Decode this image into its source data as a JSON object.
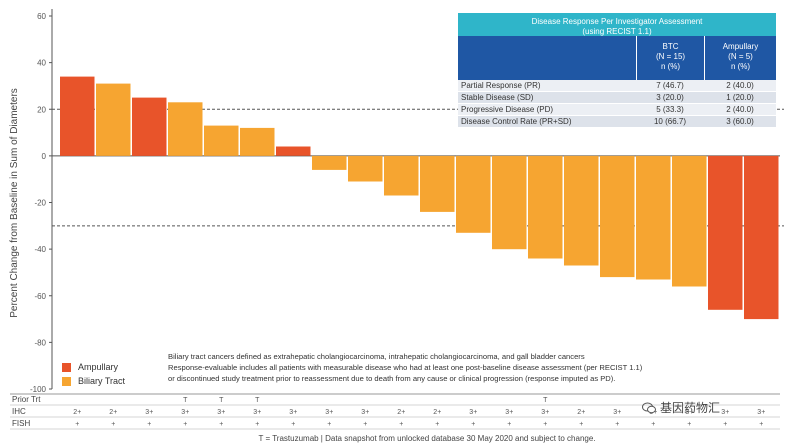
{
  "chart_data": {
    "type": "bar",
    "title": "",
    "xlabel": "",
    "ylabel": "Percent Change from Baseline in Sum of Diameters",
    "ylim": [
      -100,
      60
    ],
    "yticks": [
      60,
      40,
      20,
      0,
      -20,
      -40,
      -60,
      -80,
      -100
    ],
    "reference_lines": [
      20,
      -30
    ],
    "series_colors": {
      "Ampullary": "#e8542a",
      "Biliary Tract": "#f6a531"
    },
    "bars": [
      {
        "value": 34,
        "group": "Ampullary",
        "prior_trt": "",
        "ihc": "2+",
        "fish": "+"
      },
      {
        "value": 31,
        "group": "Biliary Tract",
        "prior_trt": "",
        "ihc": "2+",
        "fish": "+"
      },
      {
        "value": 25,
        "group": "Ampullary",
        "prior_trt": "",
        "ihc": "3+",
        "fish": "+"
      },
      {
        "value": 23,
        "group": "Biliary Tract",
        "prior_trt": "T",
        "ihc": "3+",
        "fish": "+"
      },
      {
        "value": 13,
        "group": "Biliary Tract",
        "prior_trt": "T",
        "ihc": "3+",
        "fish": "+"
      },
      {
        "value": 12,
        "group": "Biliary Tract",
        "prior_trt": "T",
        "ihc": "3+",
        "fish": "+"
      },
      {
        "value": 4,
        "group": "Ampullary",
        "prior_trt": "",
        "ihc": "3+",
        "fish": "+"
      },
      {
        "value": -6,
        "group": "Biliary Tract",
        "prior_trt": "",
        "ihc": "3+",
        "fish": "+"
      },
      {
        "value": -11,
        "group": "Biliary Tract",
        "prior_trt": "",
        "ihc": "3+",
        "fish": "+"
      },
      {
        "value": -17,
        "group": "Biliary Tract",
        "prior_trt": "",
        "ihc": "2+",
        "fish": "+"
      },
      {
        "value": -24,
        "group": "Biliary Tract",
        "prior_trt": "",
        "ihc": "2+",
        "fish": "+"
      },
      {
        "value": -33,
        "group": "Biliary Tract",
        "prior_trt": "",
        "ihc": "3+",
        "fish": "+"
      },
      {
        "value": -40,
        "group": "Biliary Tract",
        "prior_trt": "",
        "ihc": "3+",
        "fish": "+"
      },
      {
        "value": -44,
        "group": "Biliary Tract",
        "prior_trt": "T",
        "ihc": "3+",
        "fish": "+"
      },
      {
        "value": -47,
        "group": "Biliary Tract",
        "prior_trt": "",
        "ihc": "2+",
        "fish": "+"
      },
      {
        "value": -52,
        "group": "Biliary Tract",
        "prior_trt": "",
        "ihc": "3+",
        "fish": "+"
      },
      {
        "value": -53,
        "group": "Biliary Tract",
        "prior_trt": "",
        "ihc": "3+",
        "fish": "+"
      },
      {
        "value": -56,
        "group": "Biliary Tract",
        "prior_trt": "",
        "ihc": "3+",
        "fish": "+"
      },
      {
        "value": -66,
        "group": "Ampullary",
        "prior_trt": "",
        "ihc": "3+",
        "fish": "+"
      },
      {
        "value": -70,
        "group": "Ampullary",
        "prior_trt": "",
        "ihc": "3+",
        "fish": "+"
      }
    ],
    "row_labels": {
      "prior_trt": "Prior Trt",
      "ihc": "IHC",
      "fish": "FISH"
    },
    "legend": [
      "Ampullary",
      "Biliary Tract"
    ]
  },
  "response_table": {
    "title_line1": "Disease Response Per Investigator Assessment",
    "title_line2": "(using RECIST 1.1)",
    "columns": [
      {
        "l1": "BTC",
        "l2": "(N = 15)",
        "l3": "n (%)"
      },
      {
        "l1": "Ampullary",
        "l2": "(N = 5)",
        "l3": "n (%)"
      }
    ],
    "rows": [
      {
        "label": "Partial Response (PR)",
        "btc": "7 (46.7)",
        "amp": "2 (40.0)"
      },
      {
        "label": "Stable Disease (SD)",
        "btc": "3 (20.0)",
        "amp": "1 (20.0)"
      },
      {
        "label": "Progressive Disease (PD)",
        "btc": "5 (33.3)",
        "amp": "2 (40.0)"
      },
      {
        "label": "Disease Control Rate (PR+SD)",
        "btc": "10 (66.7)",
        "amp": "3 (60.0)"
      }
    ]
  },
  "legend": {
    "ampullary": "Ampullary",
    "biliary": "Biliary Tract"
  },
  "notes": {
    "line1": "Biliary tract cancers defined as extrahepatic cholangiocarcinoma, intrahepatic cholangiocarcinoma, and gall bladder cancers",
    "line2": "Response-evaluable includes all patients with measurable disease who had at least one post-baseline disease assessment (per RECIST 1.1)",
    "line3": "or discontinued study treatment prior to reassessment due to death from any cause or clinical progression (response imputed as PD)."
  },
  "footnote": "T = Trastuzumab | Data snapshot from unlocked database 30 May 2020 and subject to change.",
  "watermark": "基因药物汇"
}
